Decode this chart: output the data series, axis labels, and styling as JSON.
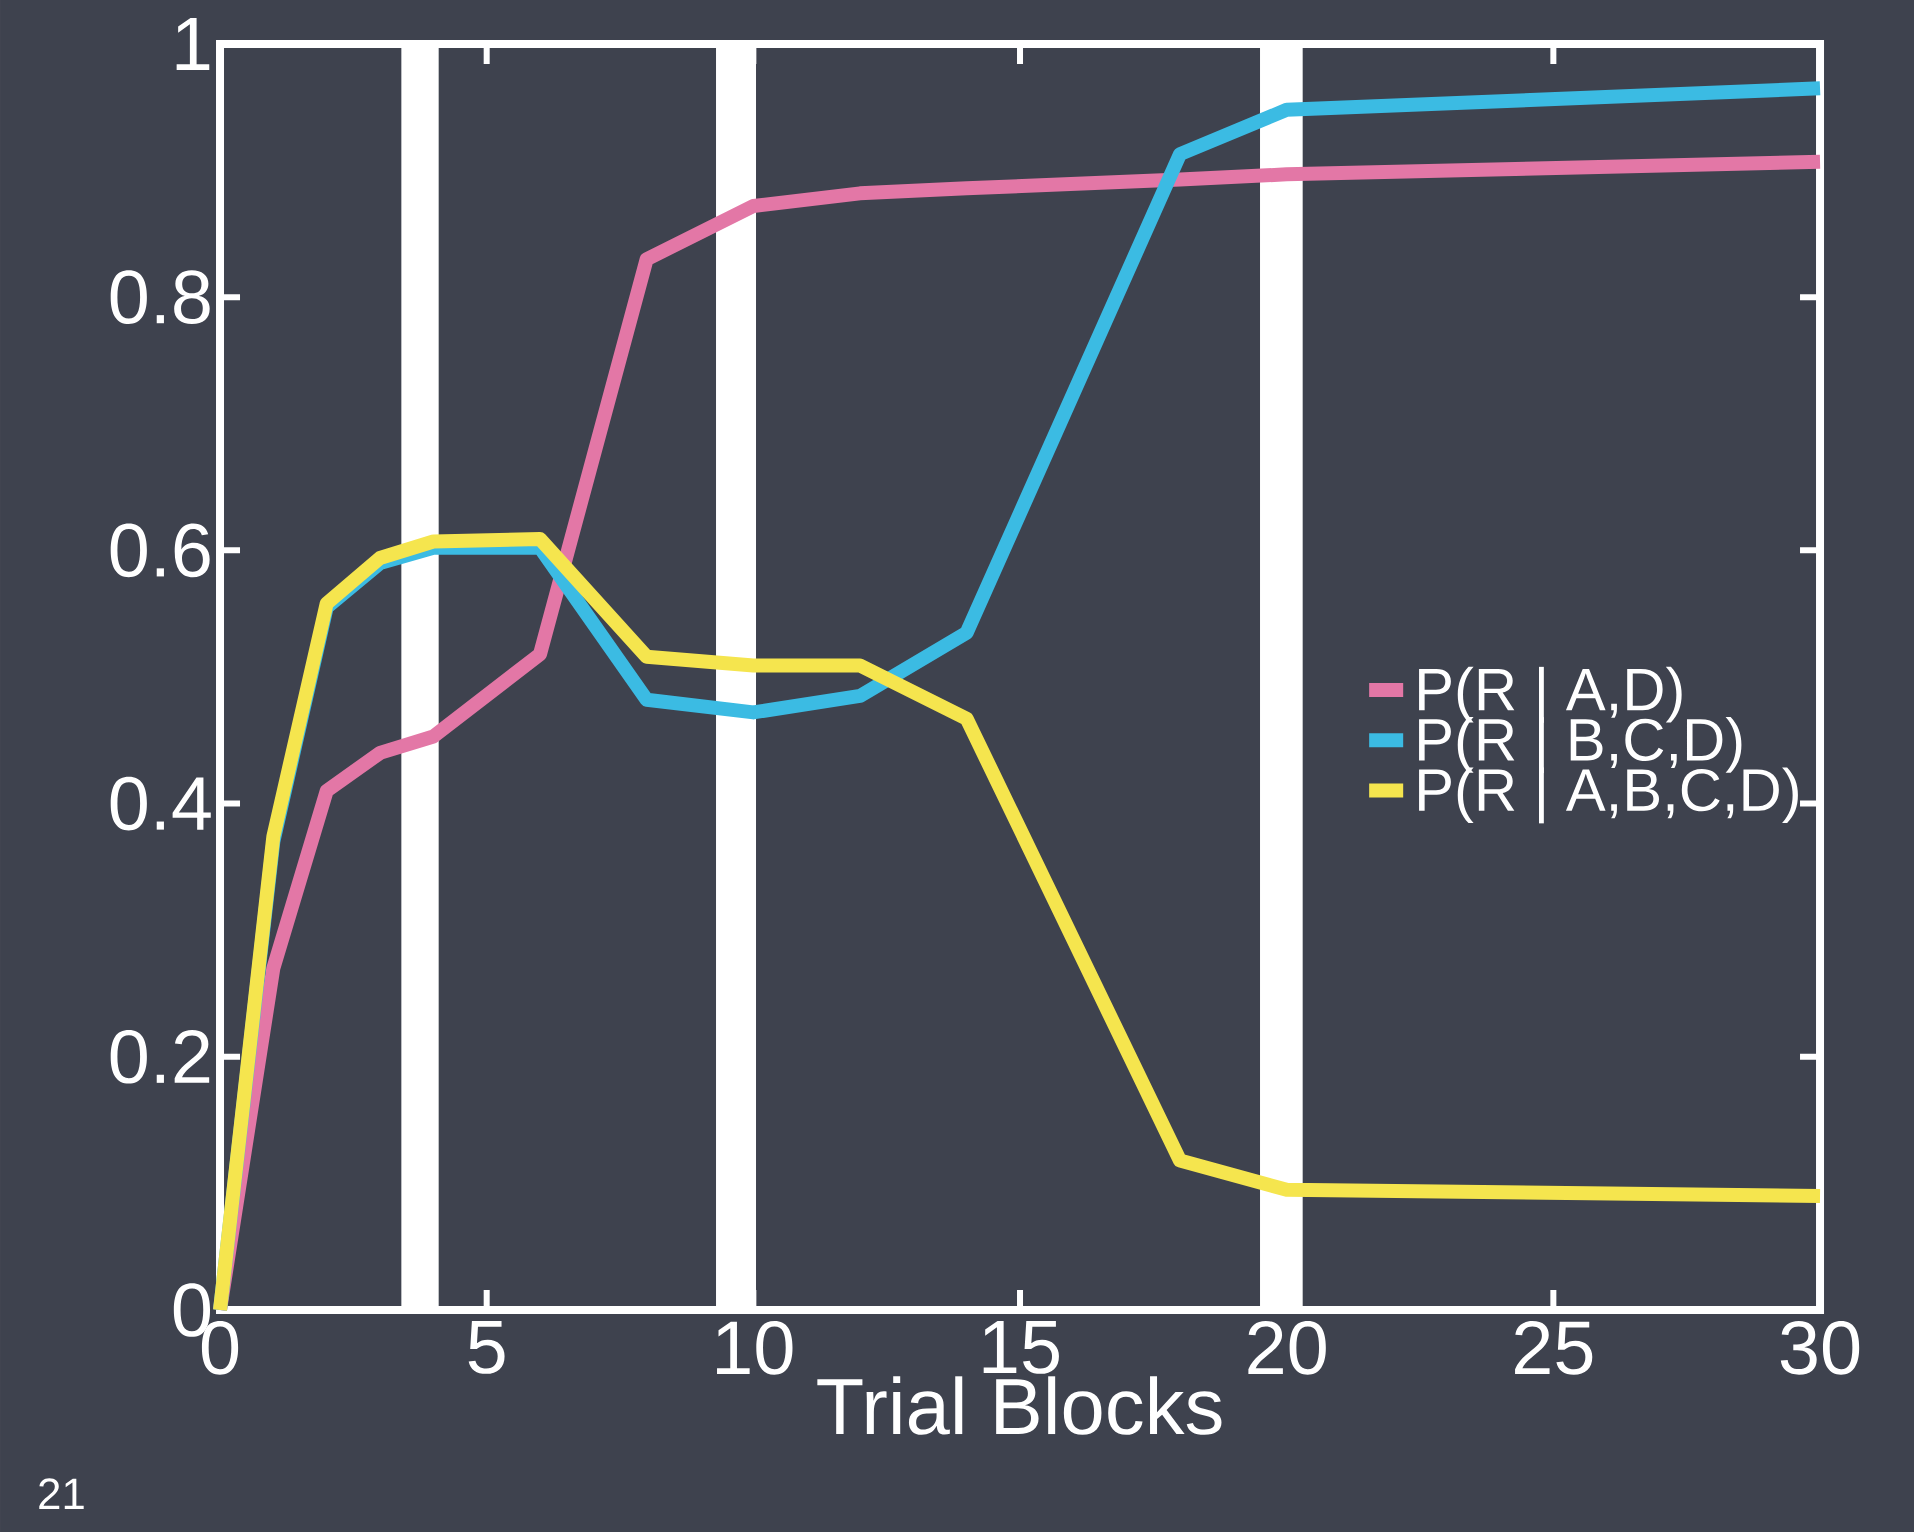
{
  "chart_data": {
    "type": "line",
    "xlabel": "Trial Blocks",
    "x": [
      0,
      1,
      2,
      3,
      4,
      6,
      8,
      10,
      12,
      14,
      18,
      20,
      30
    ],
    "series": [
      {
        "name": "P(R | A,D)",
        "color": "#e377a6",
        "values": [
          0,
          0.27,
          0.41,
          0.44,
          0.453,
          0.518,
          0.83,
          0.872,
          0.882,
          0.886,
          0.893,
          0.897,
          0.907
        ]
      },
      {
        "name": "P(R | B,C,D)",
        "color": "#3bbbe3",
        "values": [
          0,
          0.37,
          0.555,
          0.59,
          0.602,
          0.602,
          0.482,
          0.472,
          0.485,
          0.535,
          0.913,
          0.948,
          0.965
        ]
      },
      {
        "name": "P(R | A,B,C,D)",
        "color": "#f5e54e",
        "values": [
          0,
          0.374,
          0.558,
          0.594,
          0.607,
          0.609,
          0.516,
          0.509,
          0.509,
          0.467,
          0.118,
          0.095,
          0.09
        ]
      }
    ],
    "xlim": [
      0,
      30
    ],
    "ylim": [
      0,
      1
    ],
    "xticks": [
      0,
      5,
      10,
      15,
      20,
      25,
      30
    ],
    "yticks": [
      0,
      0.2,
      0.4,
      0.6,
      0.8,
      1
    ],
    "bands": [
      {
        "axis": "x",
        "from": 3.4,
        "to": 4.1,
        "color": "#ffffff"
      },
      {
        "axis": "x",
        "from": 9.3,
        "to": 10.05,
        "color": "#ffffff"
      },
      {
        "axis": "x",
        "from": 19.5,
        "to": 20.3,
        "color": "#ffffff"
      }
    ],
    "legend": "right",
    "grid": false,
    "marker": "none",
    "line_style": "solid",
    "annotations": [
      "21"
    ]
  }
}
